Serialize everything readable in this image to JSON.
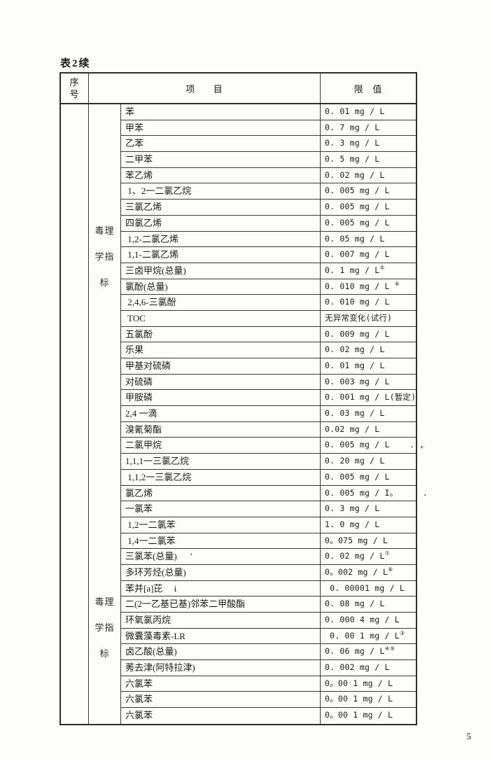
{
  "page": {
    "title": "表2续",
    "page_number": "5"
  },
  "table": {
    "header": {
      "no_line1": "序",
      "no_line2": "号",
      "item": "项      目",
      "limit": "限   值"
    },
    "category": {
      "line1": "毒理",
      "line2": "学指",
      "line3": "标"
    },
    "rows": [
      {
        "item": "苯",
        "limit": "0. 01 mg / L"
      },
      {
        "item": "甲苯",
        "limit": "0. 7 mg / L"
      },
      {
        "item": "乙苯",
        "limit": "0. 3 mg / L"
      },
      {
        "item": "二甲苯",
        "limit": "0. 5 mg / L"
      },
      {
        "item": "苯乙烯",
        "limit": "0. 02 mg / L"
      },
      {
        "item": " 1、2一二氯乙烷",
        "limit": "0. 005 mg / L"
      },
      {
        "item": "三氯乙烯",
        "limit": "0. 005 mg / L"
      },
      {
        "item": "四氯乙烯",
        "limit": "0. 005 mg / L"
      },
      {
        "item": " 1,2-二氯乙烯",
        "limit": "0. 05 mg / L"
      },
      {
        "item": " 1,1-二氯乙烯",
        "limit": "0. 007 mg / L"
      },
      {
        "item": "三卤甲烷(总量)",
        "limit": "0. 1 mg / L",
        "sup": "⑤"
      },
      {
        "item": "氯酚(总量)",
        "limit": "0. 010 mg / L ",
        "sup": "⑥"
      },
      {
        "item": " 2,4,6-三氯酚",
        "limit": "0. 010 mg / L"
      },
      {
        "item": " TOC",
        "limit": "无异常变化(试行)"
      },
      {
        "item": "五氯酚",
        "limit": "0. 009 mg / L"
      },
      {
        "item": "乐果",
        "limit": "0. 02 mg / L"
      },
      {
        "item": "甲基对硫磷",
        "limit": "0. 01 mg / L"
      },
      {
        "item": "对硫磷",
        "limit": "0. 003 mg / L"
      },
      {
        "item": "甲胺磷",
        "limit": "0. 001 mg / L(暂定)"
      },
      {
        "item": "2,4 一滴",
        "limit": "0. 03 mg / L"
      },
      {
        "item": "溴氰菊酯",
        "limit": "0.02 mg / L"
      },
      {
        "item": "二氯甲烷",
        "limit": "0. 005 mg / L    . ,"
      },
      {
        "item": "1,1,1一三氯乙烷",
        "limit": "0. 20 mg / L"
      },
      {
        "item": " 1,1,2一三氯乙烷",
        "limit": "0. 005 mg / L"
      },
      {
        "item": "氯乙烯",
        "limit": "0. 005 mg / I。     ."
      },
      {
        "item": "一氯苯",
        "limit": "0. 3 mg / L"
      },
      {
        "item": " 1,2一二氯苯",
        "limit": "1. 0 mg / L"
      },
      {
        "item": " 1,4一二氯苯",
        "limit": "0。075 mg / L"
      },
      {
        "item": "三氯苯(总量)      '",
        "limit": "0. 02 mg / L",
        "sup": "⑦"
      },
      {
        "item": "多环芳烃(总量)",
        "limit": "0。002 mg / L",
        "sup": "⑧"
      },
      {
        "item": "苯并[a]芘     i",
        "limit": " 0. 00001 mg / L"
      },
      {
        "item": "二(2一乙基已基)邻苯二甲酸酯",
        "limit": "0. 08 mg / L"
      },
      {
        "item": "环氧氯丙烷",
        "limit": "0. 000 4 mg / L"
      },
      {
        "item": "微囊藻毒素-LR",
        "limit": " 0. 00 1 mg / L",
        "sup": "③"
      },
      {
        "item": "卤乙酸(总量)",
        "limit": "0. 06 mg / L",
        "sup": "④⑨"
      },
      {
        "item": "莠去津(阿特拉津)",
        "limit": "0. 002 mg / L"
      },
      {
        "item": "六氯苯",
        "limit": "0。00 1 mg / L"
      },
      {
        "item": "六氯苯",
        "limit": "0。00 1 mg / L"
      },
      {
        "item": "六氯苯",
        "limit": "0。00 1 mg / L"
      }
    ]
  }
}
